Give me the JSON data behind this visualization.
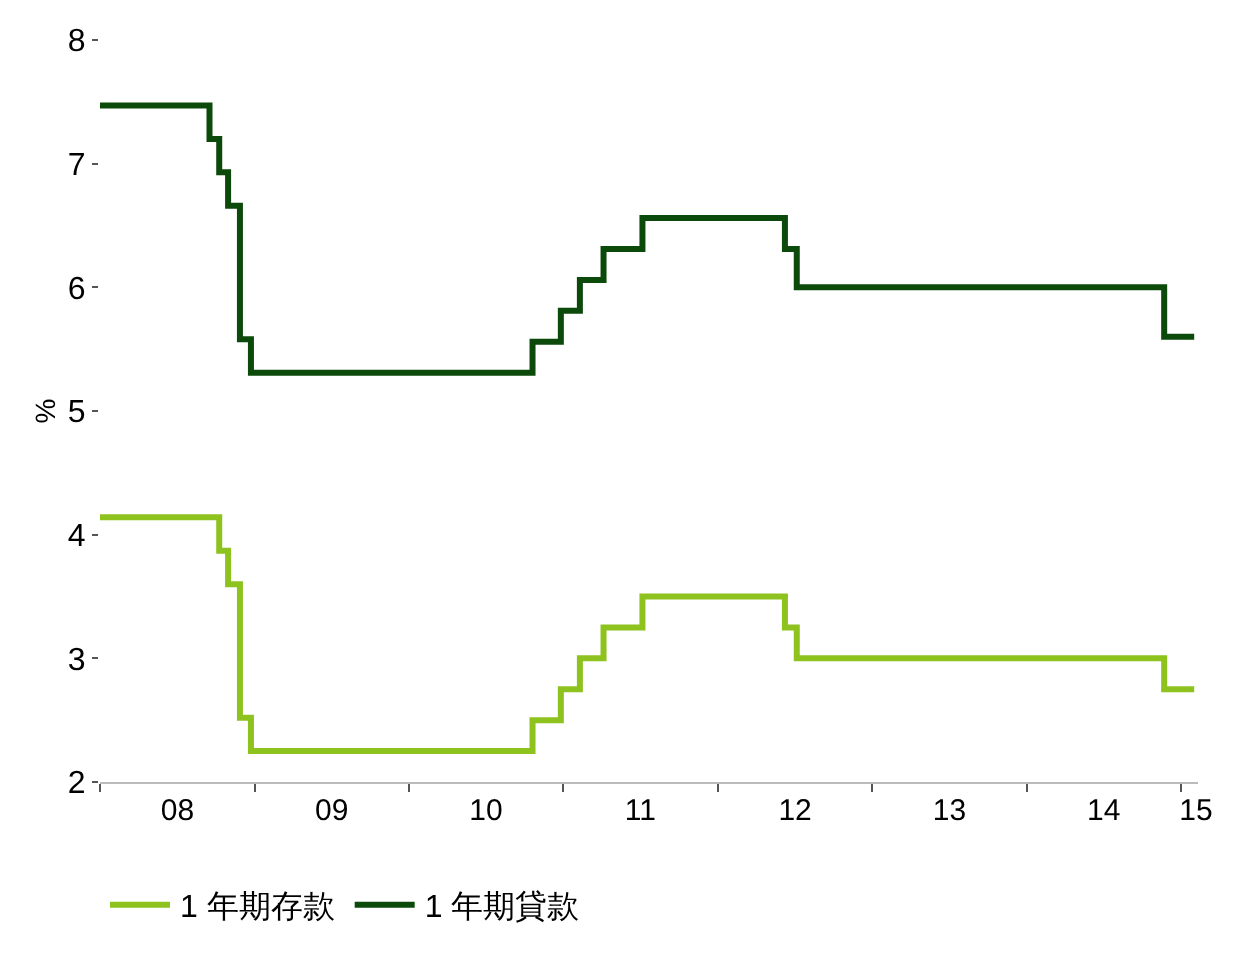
{
  "chart_data": {
    "type": "step",
    "ylabel": "%",
    "xlim": [
      "2008-01-01",
      "2015-02-10"
    ],
    "xticks": [
      {
        "value": "2008-01-01",
        "label": null
      },
      {
        "value": "2008-07-02",
        "label": "08"
      },
      {
        "value": "2009-01-01",
        "label": null
      },
      {
        "value": "2009-07-02",
        "label": "09"
      },
      {
        "value": "2010-01-01",
        "label": null
      },
      {
        "value": "2010-07-02",
        "label": "10"
      },
      {
        "value": "2011-01-01",
        "label": null
      },
      {
        "value": "2011-07-02",
        "label": "11"
      },
      {
        "value": "2012-01-01",
        "label": null
      },
      {
        "value": "2012-07-02",
        "label": "12"
      },
      {
        "value": "2013-01-01",
        "label": null
      },
      {
        "value": "2013-07-02",
        "label": "13"
      },
      {
        "value": "2014-01-01",
        "label": null
      },
      {
        "value": "2014-07-02",
        "label": "14"
      },
      {
        "value": "2015-01-01",
        "label": null
      },
      {
        "value": "2015-02-05",
        "label": "15"
      }
    ],
    "ylim": [
      2,
      8
    ],
    "yticks": [
      2,
      3,
      4,
      5,
      6,
      7,
      8
    ],
    "legend": "bottom",
    "marker": "none",
    "line_style": "solid",
    "series": [
      {
        "name": "1 年期存款",
        "color": "#8dc21f",
        "x": [
          "2008-01-01",
          "2008-10-09",
          "2008-10-30",
          "2008-11-27",
          "2008-12-23",
          "2010-10-20",
          "2010-12-26",
          "2011-02-09",
          "2011-04-06",
          "2011-07-07",
          "2012-06-08",
          "2012-07-06",
          "2014-11-22",
          "2015-02-01"
        ],
        "values": [
          4.14,
          3.87,
          3.6,
          2.52,
          2.25,
          2.5,
          2.75,
          3.0,
          3.25,
          3.5,
          3.25,
          3.0,
          2.75,
          2.75
        ]
      },
      {
        "name": "1 年期貸款",
        "color": "#0b4a0b",
        "x": [
          "2008-01-01",
          "2008-09-16",
          "2008-10-09",
          "2008-10-30",
          "2008-11-27",
          "2008-12-23",
          "2010-10-20",
          "2010-12-26",
          "2011-02-09",
          "2011-04-06",
          "2011-07-07",
          "2012-06-08",
          "2012-07-06",
          "2014-11-22",
          "2015-02-01"
        ],
        "values": [
          7.47,
          7.2,
          6.93,
          6.66,
          5.58,
          5.31,
          5.56,
          5.81,
          6.06,
          6.31,
          6.56,
          6.31,
          6.0,
          5.6,
          5.6
        ]
      }
    ]
  }
}
